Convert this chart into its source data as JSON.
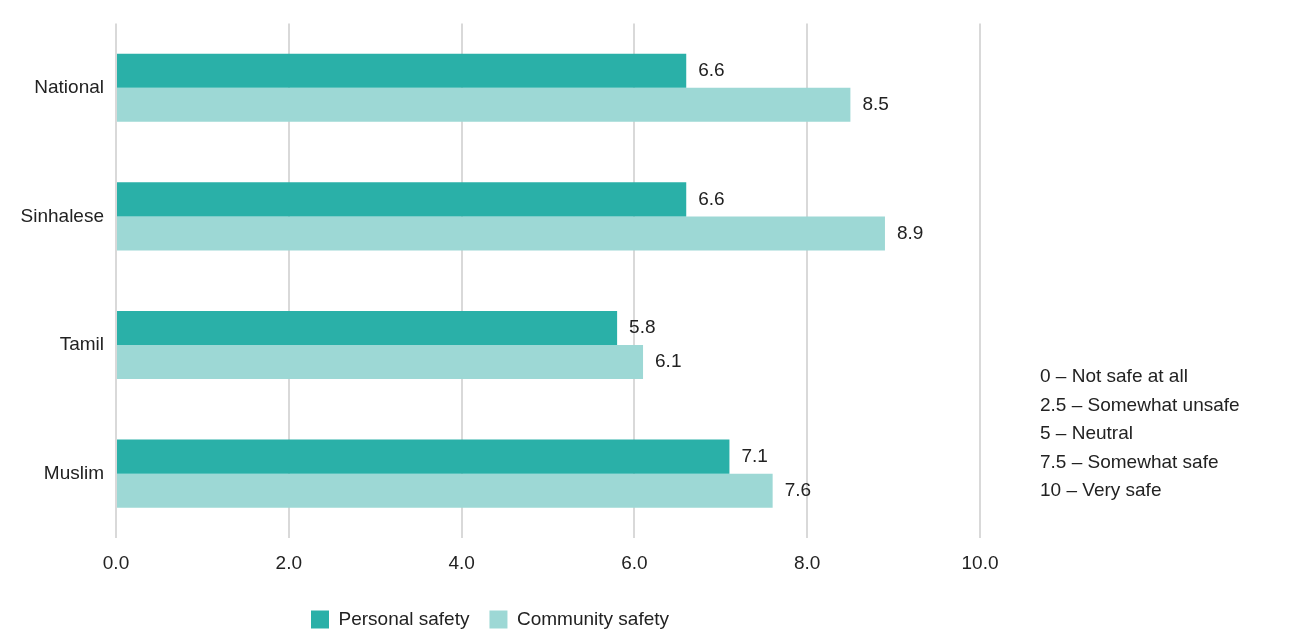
{
  "chart_data": {
    "type": "bar",
    "orientation": "horizontal",
    "categories": [
      "National",
      "Sinhalese",
      "Tamil",
      "Muslim"
    ],
    "series": [
      {
        "name": "Personal safety",
        "color": "#2ab0a8",
        "values": [
          6.6,
          6.6,
          5.8,
          7.1
        ]
      },
      {
        "name": "Community safety",
        "color": "#9dd8d5",
        "values": [
          8.5,
          8.9,
          6.1,
          7.6
        ]
      }
    ],
    "xlim": [
      0,
      10
    ],
    "xticks": [
      {
        "value": 0,
        "label": "0.0"
      },
      {
        "value": 2,
        "label": "2.0"
      },
      {
        "value": 4,
        "label": "4.0"
      },
      {
        "value": 6,
        "label": "6.0"
      },
      {
        "value": 8,
        "label": "8.0"
      },
      {
        "value": 10,
        "label": "10.0"
      }
    ],
    "grid": "x",
    "legend": "bottom",
    "data_labels": true,
    "annotations": [
      "0 – Not safe at all",
      "2.5 – Somewhat unsafe",
      "5 – Neutral",
      "7.5 – Somewhat safe",
      "10 – Very safe"
    ]
  }
}
